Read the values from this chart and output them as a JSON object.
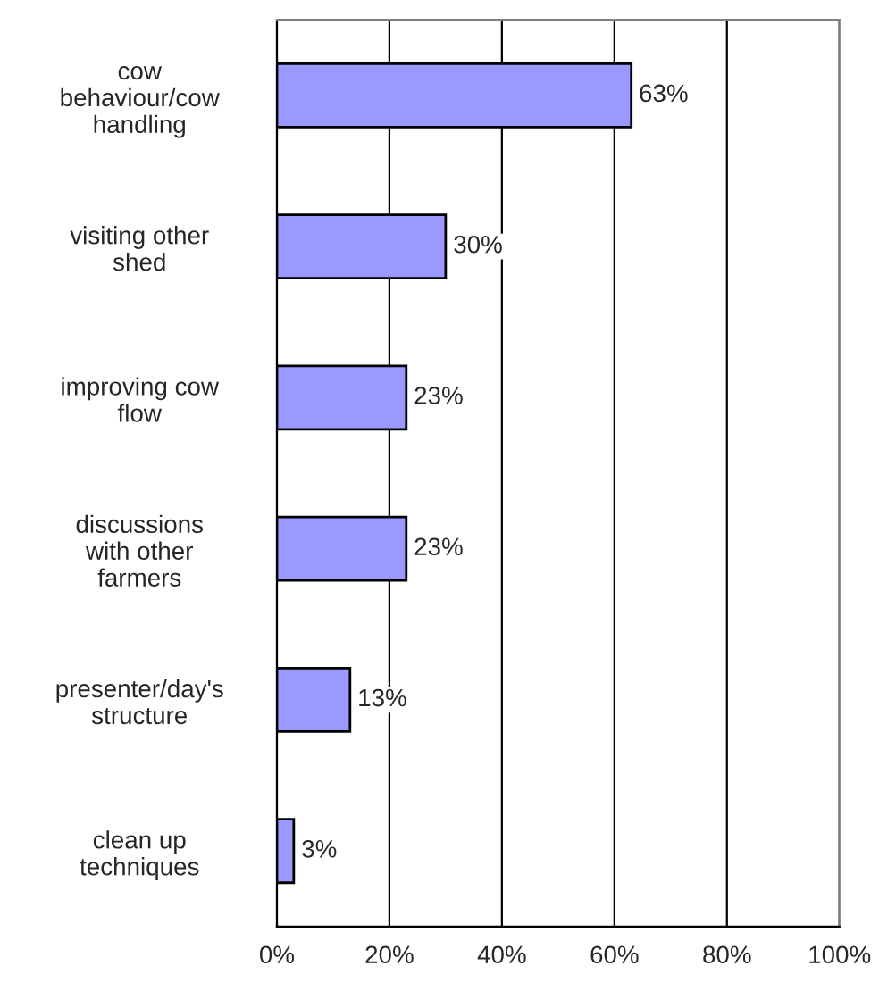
{
  "chart_data": {
    "type": "bar",
    "orientation": "horizontal",
    "categories": [
      "cow\nbehaviour/cow\nhandling",
      "visiting other\nshed",
      "improving cow\nflow",
      "discussions\nwith other\nfarmers",
      "presenter/day's\nstructure",
      "clean up\ntechniques"
    ],
    "values": [
      63,
      30,
      23,
      23,
      13,
      3
    ],
    "value_labels": [
      "63%",
      "30%",
      "23%",
      "23%",
      "13%",
      "3%"
    ],
    "color": "#9999ff",
    "xlim": [
      0,
      100
    ],
    "xticks": [
      {
        "value": 0,
        "label": "0%"
      },
      {
        "value": 20,
        "label": "20%"
      },
      {
        "value": 40,
        "label": "40%"
      },
      {
        "value": 60,
        "label": "60%"
      },
      {
        "value": 80,
        "label": "80%"
      },
      {
        "value": 100,
        "label": "100%"
      }
    ],
    "grid": "x",
    "legend": false
  }
}
